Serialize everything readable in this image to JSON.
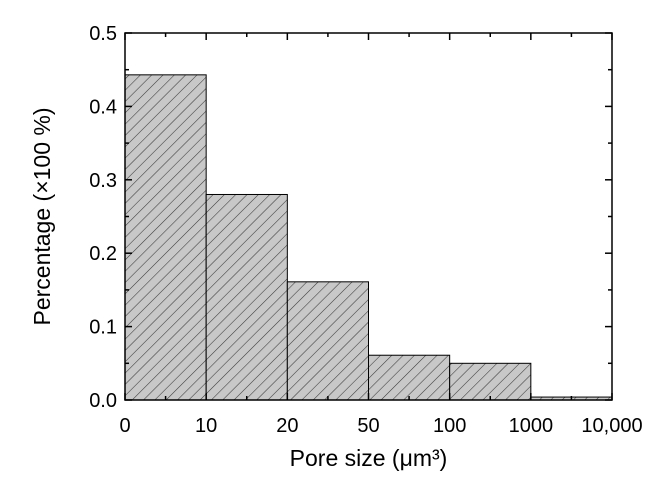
{
  "chart_data": {
    "type": "bar",
    "subtype": "histogram",
    "title": "",
    "xlabel": "Pore size (μm³)",
    "ylabel": "Percentage (×100 %)",
    "x_tick_labels": [
      "0",
      "10",
      "20",
      "50",
      "100",
      "1000",
      "10,000"
    ],
    "bins": [
      {
        "from": "0",
        "to": "10",
        "value": 0.443
      },
      {
        "from": "10",
        "to": "20",
        "value": 0.28
      },
      {
        "from": "20",
        "to": "50",
        "value": 0.161
      },
      {
        "from": "50",
        "to": "100",
        "value": 0.061
      },
      {
        "from": "100",
        "to": "1000",
        "value": 0.05
      },
      {
        "from": "1000",
        "to": "10,000",
        "value": 0.004
      }
    ],
    "ylim": [
      0,
      0.5
    ],
    "y_ticks": [
      "0.0",
      "0.1",
      "0.2",
      "0.3",
      "0.4",
      "0.5"
    ],
    "grid": false,
    "legend": "none",
    "bar_fill": "#c8c8c8",
    "hatch_color": "#3a3a3a",
    "edge_color": "#000000"
  }
}
